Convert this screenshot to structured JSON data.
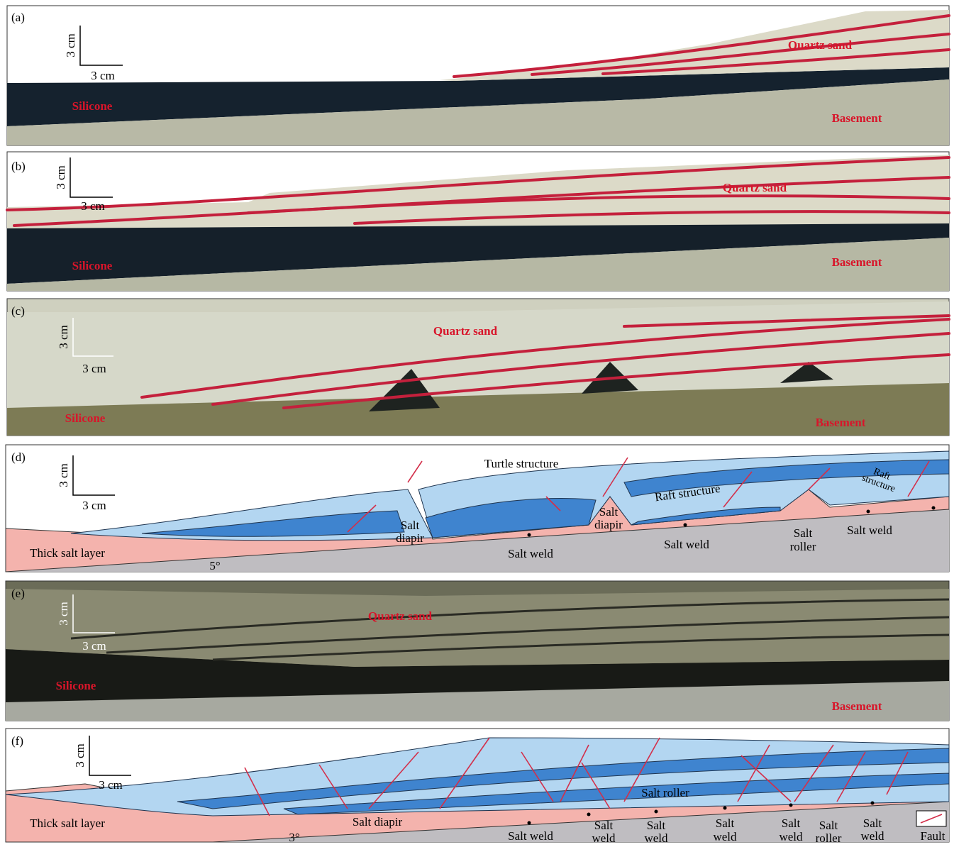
{
  "panels": [
    {
      "label": "(a)",
      "scale_vertical": "3 cm",
      "scale_horizontal": "3 cm",
      "annotations": [
        "Quartz sand",
        "Silicone",
        "Basement"
      ]
    },
    {
      "label": "(b)",
      "scale_vertical": "3 cm",
      "scale_horizontal": "3 cm",
      "annotations": [
        "Quartz sand",
        "Silicone",
        "Basement"
      ]
    },
    {
      "label": "(c)",
      "scale_vertical": "3 cm",
      "scale_horizontal": "3 cm",
      "annotations": [
        "Quartz sand",
        "Silicone",
        "Basement"
      ]
    },
    {
      "label": "(d)",
      "scale_vertical": "3 cm",
      "scale_horizontal": "3 cm",
      "annotations": [
        "Turtle structure",
        "Raft structure",
        [
          "Raft",
          "structure"
        ],
        [
          "Salt",
          "diapir"
        ],
        [
          "Salt",
          "diapir"
        ],
        "Salt weld",
        "Salt weld",
        [
          "Salt",
          "roller"
        ],
        "Salt weld",
        "Thick salt layer",
        "5°"
      ]
    },
    {
      "label": "(e)",
      "scale_vertical": "3 cm",
      "scale_horizontal": "3 cm",
      "annotations": [
        "Quartz sand",
        "Silicone",
        "Basement"
      ]
    },
    {
      "label": "(f)",
      "scale_vertical": "3 cm",
      "scale_horizontal": "3 cm",
      "annotations": [
        "Salt diapir",
        "Salt roller",
        "Salt weld",
        [
          "Salt",
          "weld"
        ],
        [
          "Salt",
          "weld"
        ],
        [
          "Salt",
          "weld"
        ],
        [
          "Salt",
          "weld"
        ],
        [
          "Salt",
          "roller"
        ],
        [
          "Salt",
          "weld"
        ],
        "Thick salt layer",
        "3°",
        "Fault"
      ]
    }
  ]
}
